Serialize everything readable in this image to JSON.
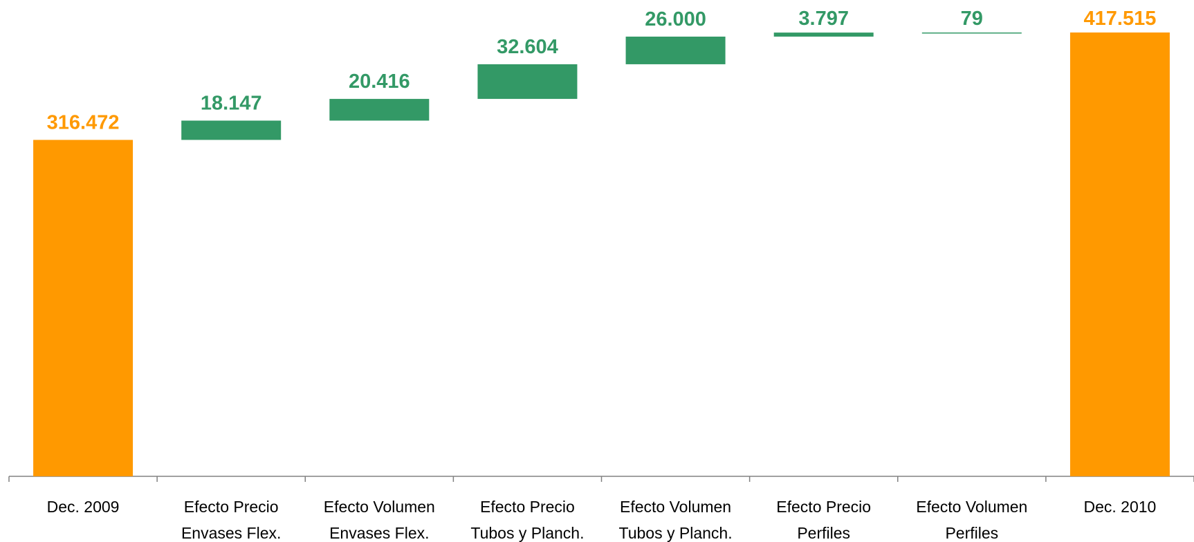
{
  "chart_data": {
    "type": "bar",
    "subtype": "waterfall",
    "categories": [
      [
        "Dec. 2009"
      ],
      [
        "Efecto Precio",
        "Envases Flex."
      ],
      [
        "Efecto Volumen",
        "Envases Flex."
      ],
      [
        "Efecto Precio",
        "Tubos y Planch."
      ],
      [
        "Efecto Volumen",
        "Tubos y Planch."
      ],
      [
        "Efecto Precio",
        "Perfiles"
      ],
      [
        "Efecto Volumen",
        "Perfiles"
      ],
      [
        "Dec. 2010"
      ]
    ],
    "values": [
      316472,
      18147,
      20416,
      32604,
      26000,
      3797,
      79,
      417515
    ],
    "labels": [
      "316.472",
      "18.147",
      "20.416",
      "32.604",
      "26.000",
      "3.797",
      "79",
      "417.515"
    ],
    "kinds": [
      "total",
      "delta",
      "delta",
      "delta",
      "delta",
      "delta",
      "delta",
      "total"
    ],
    "ylim": [
      0,
      438000
    ],
    "grid": false,
    "legend": "none",
    "colors": {
      "total": "#FF9900",
      "delta": "#339966",
      "axis": "#808080"
    }
  }
}
